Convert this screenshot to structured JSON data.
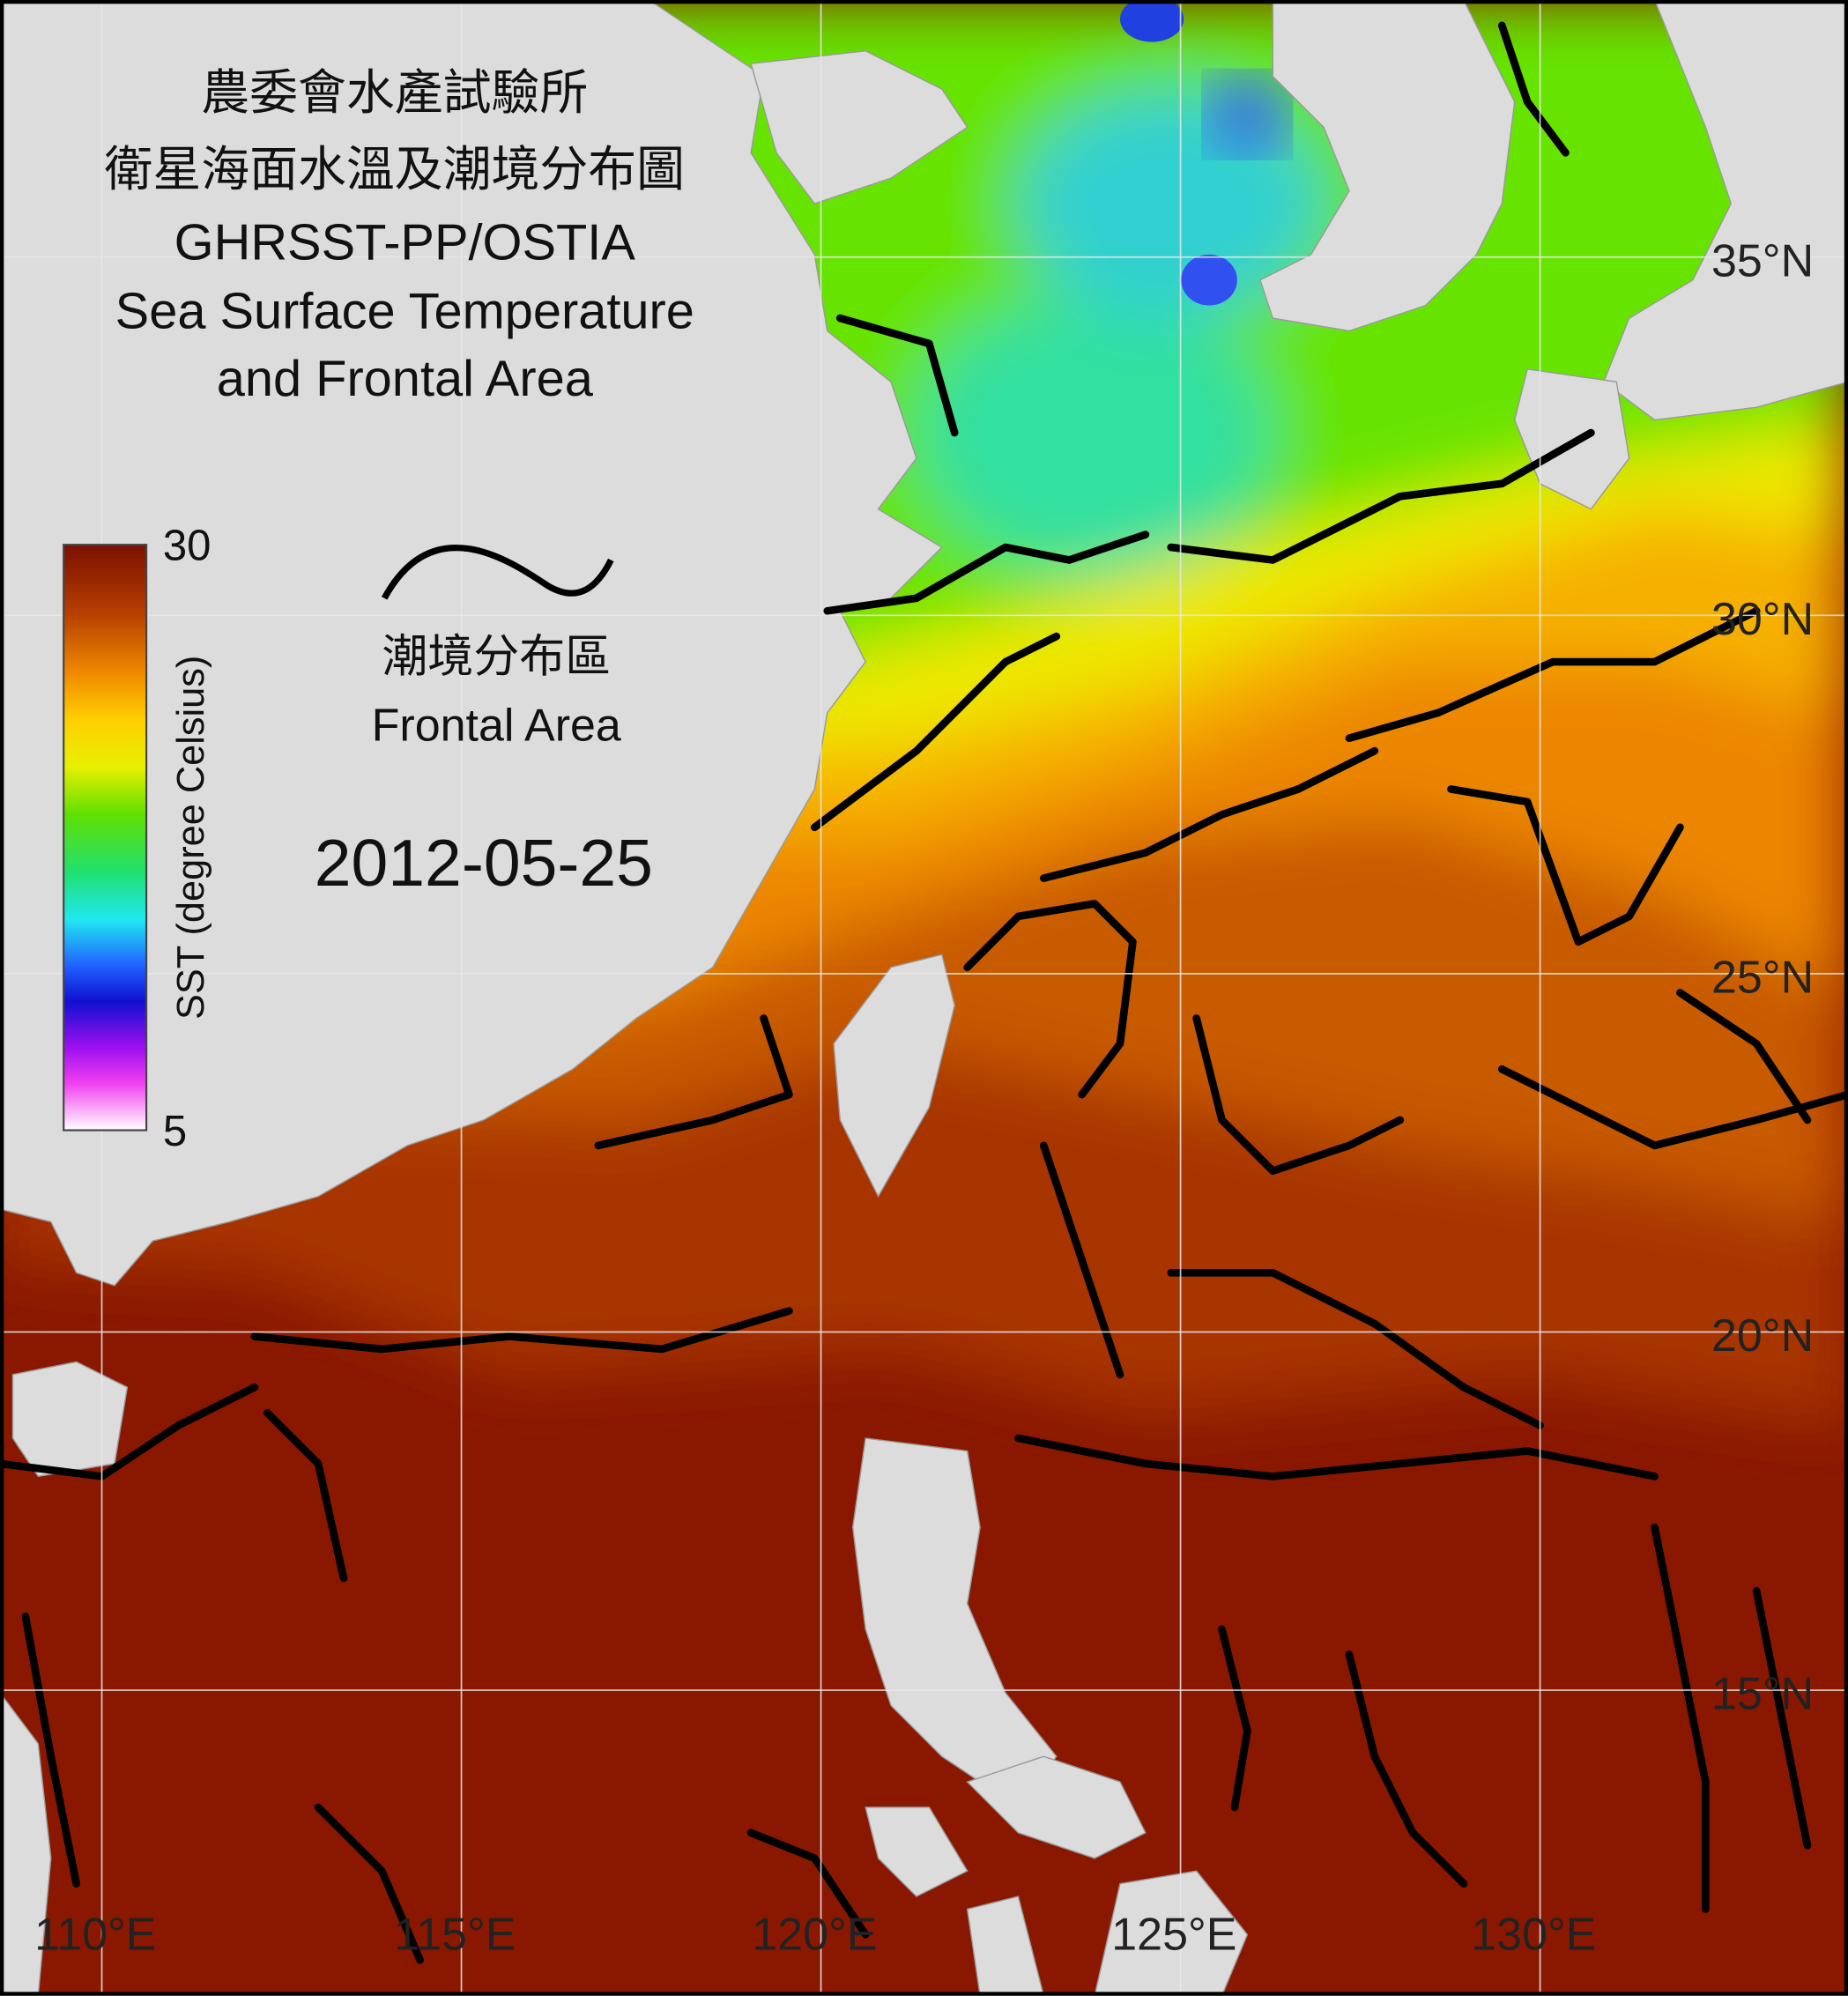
{
  "title": {
    "lines": [
      "農委會水產試驗所",
      "衛星海面水溫及潮境分布圖",
      "GHRSST-PP/OSTIA",
      "Sea Surface Temperature",
      "and Frontal Area"
    ]
  },
  "colorbar": {
    "label": "SST (degree Celsius)",
    "lim": [
      5,
      30
    ],
    "ticks": [
      30,
      5
    ]
  },
  "legend": {
    "lines": [
      "潮境分布區",
      "Frontal Area"
    ]
  },
  "date": "2012-05-25",
  "lat_grid": [
    {
      "value": 35,
      "label": "35°N"
    },
    {
      "value": 30,
      "label": "30°N"
    },
    {
      "value": 25,
      "label": "25°N"
    },
    {
      "value": 20,
      "label": "20°N"
    },
    {
      "value": 15,
      "label": "15°N"
    }
  ],
  "lon_grid": [
    {
      "value": 110,
      "label": "110°E"
    },
    {
      "value": 115,
      "label": "115°E"
    },
    {
      "value": 120,
      "label": "120°E"
    },
    {
      "value": 125,
      "label": "125°E"
    },
    {
      "value": 130,
      "label": "130°E"
    }
  ]
}
